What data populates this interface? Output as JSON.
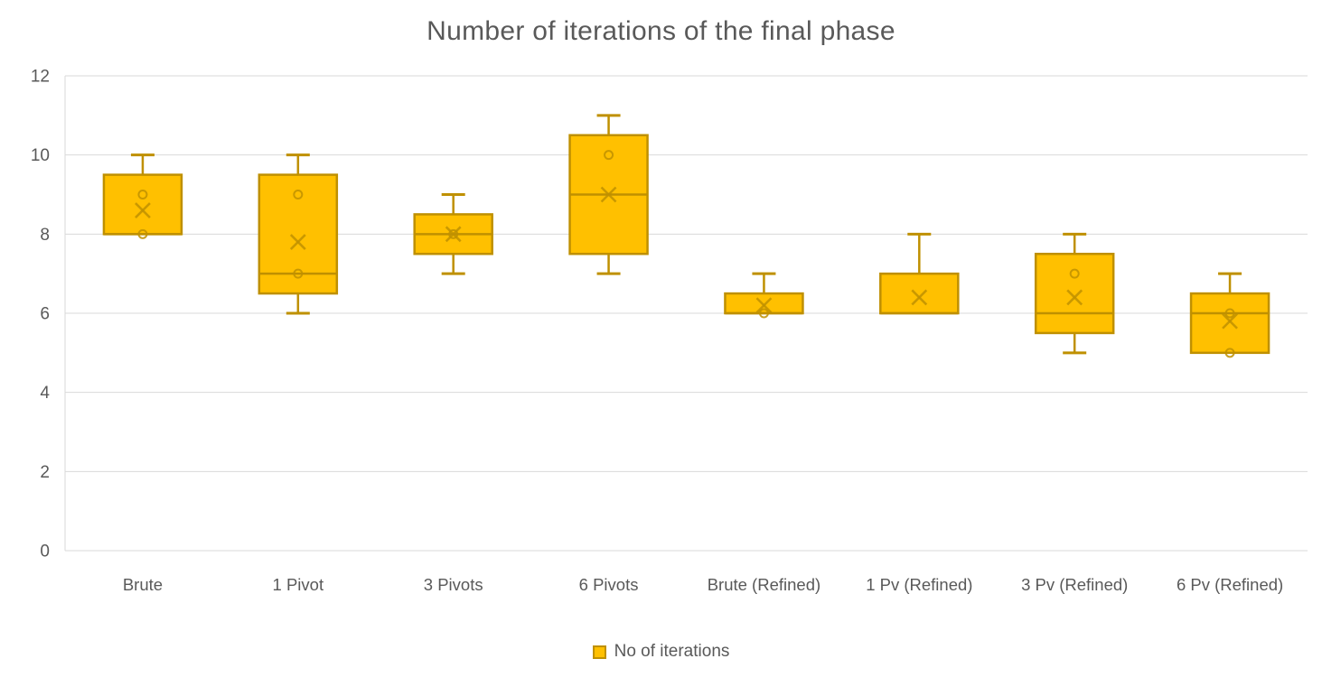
{
  "title": "Number of iterations of the final phase",
  "legend": {
    "label": "No of iterations"
  },
  "colors": {
    "box_fill": "#FFC000",
    "box_border": "#BF9000",
    "marker": "#BF9000",
    "gridline": "#D9D9D9",
    "axis_text": "#595959",
    "title_text": "#595959"
  },
  "chart_data": {
    "type": "boxplot",
    "title": "Number of iterations of the final phase",
    "xlabel": "",
    "ylabel": "",
    "ylim": [
      0,
      12
    ],
    "yticks": [
      0,
      2,
      4,
      6,
      8,
      10,
      12
    ],
    "grid": true,
    "legend_position": "bottom",
    "series_name": "No of iterations",
    "categories": [
      "Brute",
      "1 Pivot",
      "3 Pivots",
      "6 Pivots",
      "Brute (Refined)",
      "1 Pv (Refined)",
      "3 Pv (Refined)",
      "6 Pv (Refined)"
    ],
    "boxes": [
      {
        "category": "Brute",
        "whisker_low": 8,
        "q1": 8,
        "median": 8,
        "q3": 9.5,
        "whisker_high": 10,
        "mean": 8.6,
        "points": [
          9,
          8
        ]
      },
      {
        "category": "1 Pivot",
        "whisker_low": 6,
        "q1": 6.5,
        "median": 7,
        "q3": 9.5,
        "whisker_high": 10,
        "mean": 7.8,
        "points": [
          9,
          7
        ]
      },
      {
        "category": "3 Pivots",
        "whisker_low": 7,
        "q1": 7.5,
        "median": 8,
        "q3": 8.5,
        "whisker_high": 9,
        "mean": 8.0,
        "points": [
          8
        ]
      },
      {
        "category": "6 Pivots",
        "whisker_low": 7,
        "q1": 7.5,
        "median": 9,
        "q3": 10.5,
        "whisker_high": 11,
        "mean": 9.0,
        "points": [
          10
        ]
      },
      {
        "category": "Brute (Refined)",
        "whisker_low": 6,
        "q1": 6,
        "median": 6,
        "q3": 6.5,
        "whisker_high": 7,
        "mean": 6.2,
        "points": [
          6
        ]
      },
      {
        "category": "1 Pv (Refined)",
        "whisker_low": 6,
        "q1": 6,
        "median": 6,
        "q3": 7,
        "whisker_high": 8,
        "mean": 6.4,
        "points": []
      },
      {
        "category": "3 Pv (Refined)",
        "whisker_low": 5,
        "q1": 5.5,
        "median": 6,
        "q3": 7.5,
        "whisker_high": 8,
        "mean": 6.4,
        "points": [
          7
        ]
      },
      {
        "category": "6 Pv (Refined)",
        "whisker_low": 5,
        "q1": 5,
        "median": 6,
        "q3": 6.5,
        "whisker_high": 7,
        "mean": 5.8,
        "points": [
          6,
          5
        ]
      }
    ]
  }
}
